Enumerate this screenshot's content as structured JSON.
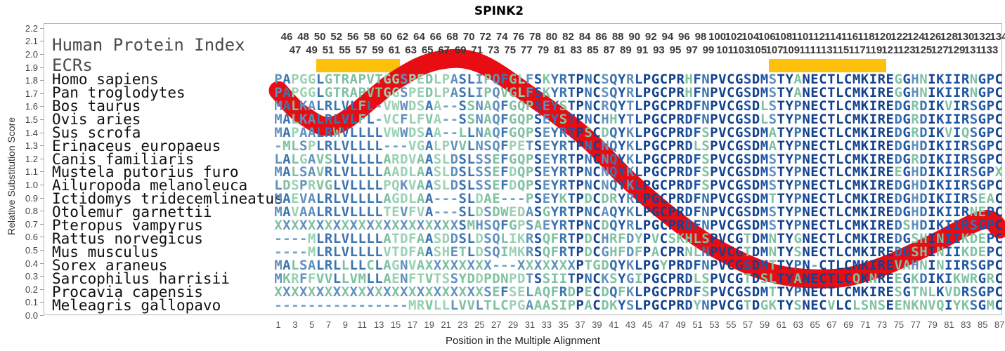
{
  "title": "SPINK2",
  "y_axis": {
    "label": "Relative Substitution Score",
    "ticks": [
      "0.0",
      "0.1",
      "0.2",
      "0.3",
      "0.4",
      "0.5",
      "0.6",
      "0.7",
      "0.8",
      "0.9",
      "1.0",
      "1.1",
      "1.2",
      "1.3",
      "1.4",
      "1.5",
      "1.6",
      "1.7",
      "1.8",
      "1.9",
      "2.0",
      "2.1",
      "2.2"
    ]
  },
  "x_axis": {
    "label": "Position in the Multiple Alignment",
    "ticks": [
      1,
      3,
      5,
      7,
      9,
      11,
      13,
      15,
      17,
      19,
      21,
      23,
      25,
      27,
      29,
      31,
      33,
      35,
      37,
      39,
      41,
      43,
      45,
      47,
      49,
      51,
      53,
      55,
      57,
      59,
      61,
      63,
      65,
      67,
      69,
      71,
      73,
      75,
      77,
      79,
      81,
      83,
      85,
      87
    ]
  },
  "header": {
    "human_protein_index_label": "Human Protein Index",
    "ecrs_label": "ECRs",
    "top_numbers": [
      46,
      48,
      50,
      52,
      56,
      58,
      60,
      62,
      64,
      66,
      68,
      70,
      72,
      74,
      76,
      78,
      80,
      82,
      84,
      86,
      88,
      90,
      92,
      94,
      96,
      98,
      100,
      102,
      104,
      106,
      108,
      110,
      112,
      114,
      116,
      118,
      120,
      122,
      124,
      126,
      128,
      130,
      132,
      134
    ],
    "bottom_numbers": [
      47,
      49,
      51,
      55,
      57,
      59,
      61,
      63,
      65,
      67,
      69,
      71,
      73,
      75,
      77,
      79,
      81,
      83,
      85,
      87,
      89,
      91,
      93,
      95,
      97,
      99,
      101,
      103,
      105,
      107,
      109,
      111,
      113,
      115,
      117,
      119,
      121,
      123,
      125,
      127,
      129,
      131,
      133
    ]
  },
  "alignment": {
    "species": [
      "Homo sapiens",
      "Pan troglodytes",
      "Bos taurus",
      "Ovis aries",
      "Sus scrofa",
      "Erinaceus europaeus",
      "Canis familiaris",
      "Mustela putorius furo",
      "Ailuropoda melanoleuca",
      "Ictidomys tridecemlineatus",
      "Otolemur garnettii",
      "Pteropus vampyrus",
      "Rattus norvegicus",
      "Mus musculus",
      "Sorex araneus",
      "Sarcophilus harrisii",
      "Procavia capensis",
      "Meleagris gallopavo"
    ],
    "sequences": [
      "PAPGGLGTRAPVTGGSPEDLPASLIPQFGLFSKYRTPNCSQYRLPGCPRHFNPVCGSDMSTYANECTLCMKIREGGHNIKIIRNGPC",
      "PAPGGLGTRAPVTGGSPEDLPASLIPQVGLFSKYRTPNCSQYRLPGCPRHFNPVCGSDMSTYANECTLCMKIREGGHNIKIIRNGPC",
      "MALKALRLVLFL-VWWDSAA--SSNAQFGQPSEYSTPNCRQYTLPGCPRDFNPVCGSDLSTYPNECTLCMKIREDGRDIKVIRSGPC",
      "MALKALRLVLFL-VCFLFVA--SSNAQFGQPSEYSTPNCHHYTLPGCPRDFNPVCGSDLSTYPNECTLCMKIREDGRDIKIIRSGPC",
      "MAPAALRWVLLLLVWWDSAA--LLNAQFGQPSEYRTPSCDQYKLPGCPRDFSPVCGSDMATYPNECTLCMKIREDGRDIKVIQSGPC",
      "-MLSPLRLVLLLL---VGALPVVLNSQFPETSEYRTPNCNQYKLPGCPRDLSPVCGSDMATYPNECTLCMKIREDGHDIKIIRSGPC",
      "LALGAVSLVLLLLARDVAASLDSLSSEFGQPSEYRTPNCNQYKLPGCPRDFSPVCGSDMSTYPNECTLCMKIREDGRDIKIIRSGPC",
      "MALSAVRLVLLLLAADLAASLDSLSSEFDQPSEYRTPNCNQYKLPGCPRDFSPVCGSDMSTYPNECTLCMKIREEGHDIKIIRSGPX",
      "LDSPRVGLVLLLLPQKVAASLDSLSSEFDQPSEYRTPNCNQYKLPGCPRDFSPVCGSDMSTYPNECTLCMKIREDGHDIKIIRSGPC",
      "MAEVALRLVLLLLAGDLAA---SLDAE---PSEYKTPDCDRYRLPGCPRDFNPVCGSDMTTYPNECTLCMKIREDGHDIKIIRSEAC",
      "MAVAALRLVLLLLTEVFVA---SLDSDWEDASGYRTPNCAQYKLPGCPRDFNPVCGSDMSTYPNECTLCMKIREDGHDIKIIRNEPC",
      "XXXXXXXXXXXXXXXXXXXXXXSMHSQFGPSAEYRTPNCDQYRLPGCPRDFNPVCGSDMSTYPNECTLCMKIREDSHDIKIIRSGPC",
      "----MLRLVLLLLATDFAASDDSLDSQLIKRSQFRTPDCHRFDYPVCSKHLSPVCGTDMNTYGNECTLCMKIREDGSHINIIKDEPC",
      "----MLRLVLLLLVTDFAASHETLDSQIMKRSQFRTPDCGHFDFPACPRNLNPVCGTDMNTYSNECTLCMKIREDGSHINIIKDEPC",
      "MALSALRLLLLCLAGNVAXXXXXXXX---XXXXXXXPTGDQYKLPGYPRDFNPVCGSDMTTYPN-CTLCMKIREVAHNINIIRSGPC",
      "MKRFFVVLLVMLLAENFTVTSSYDDPDNPDTSSIITPNCKSYGIPGCPRDLSPVCGTDSLTYANECTLCQKNREEGKDIKIKWRGRC",
      "XXXXXXXXXXXXXXXXXXXXXXXXXSEFSELAQFRDPECDQFKLPGCPRDFSPVCGSDMTTYPNECTLCMKIRESGTNLKVDRSGPC",
      "----------------MRVLLLVVLTLCPGAAASIPPACDKYSLPGCPRDYNPVCGTDGKTYSNECVLCLSNSEENKNVQIYKSGMC"
    ]
  },
  "chart_data": {
    "type": "line",
    "title": "SPINK2",
    "xlabel": "Position in the Multiple Alignment",
    "ylabel": "Relative Substitution Score",
    "xlim": [
      1,
      87
    ],
    "ylim": [
      0.0,
      2.2
    ],
    "grid": "off",
    "legend": "none",
    "series": [
      {
        "name": "relative-substitution-score",
        "x": [
          1,
          4,
          8,
          15,
          20,
          25,
          31.5,
          37.5,
          43,
          48.5,
          53.5,
          60,
          67,
          72.5,
          78.5,
          85,
          87
        ],
        "y": [
          1.72,
          1.53,
          1.46,
          1.8,
          1.95,
          1.93,
          1.66,
          1.37,
          1.02,
          0.72,
          0.5,
          0.32,
          0.28,
          0.36,
          0.53,
          0.73,
          0.66
        ],
        "color": "#e80c13",
        "stroke_width": 27
      }
    ],
    "ecr_regions": [
      {
        "start_position": 6,
        "end_position": 15
      },
      {
        "start_position": 60,
        "end_position": 73
      }
    ],
    "ecr_color": "#fcc00d",
    "residue_colors": {
      "conserved_dark": "#12418e",
      "conserved_mid": "#1d54a4",
      "semi_conserved": "#3b74b0",
      "steel": "#6090bd",
      "variable_teal": "#7fc1a1",
      "variable_light": "#9ad1b2",
      "gap_steel": "#6fa6c8"
    }
  }
}
